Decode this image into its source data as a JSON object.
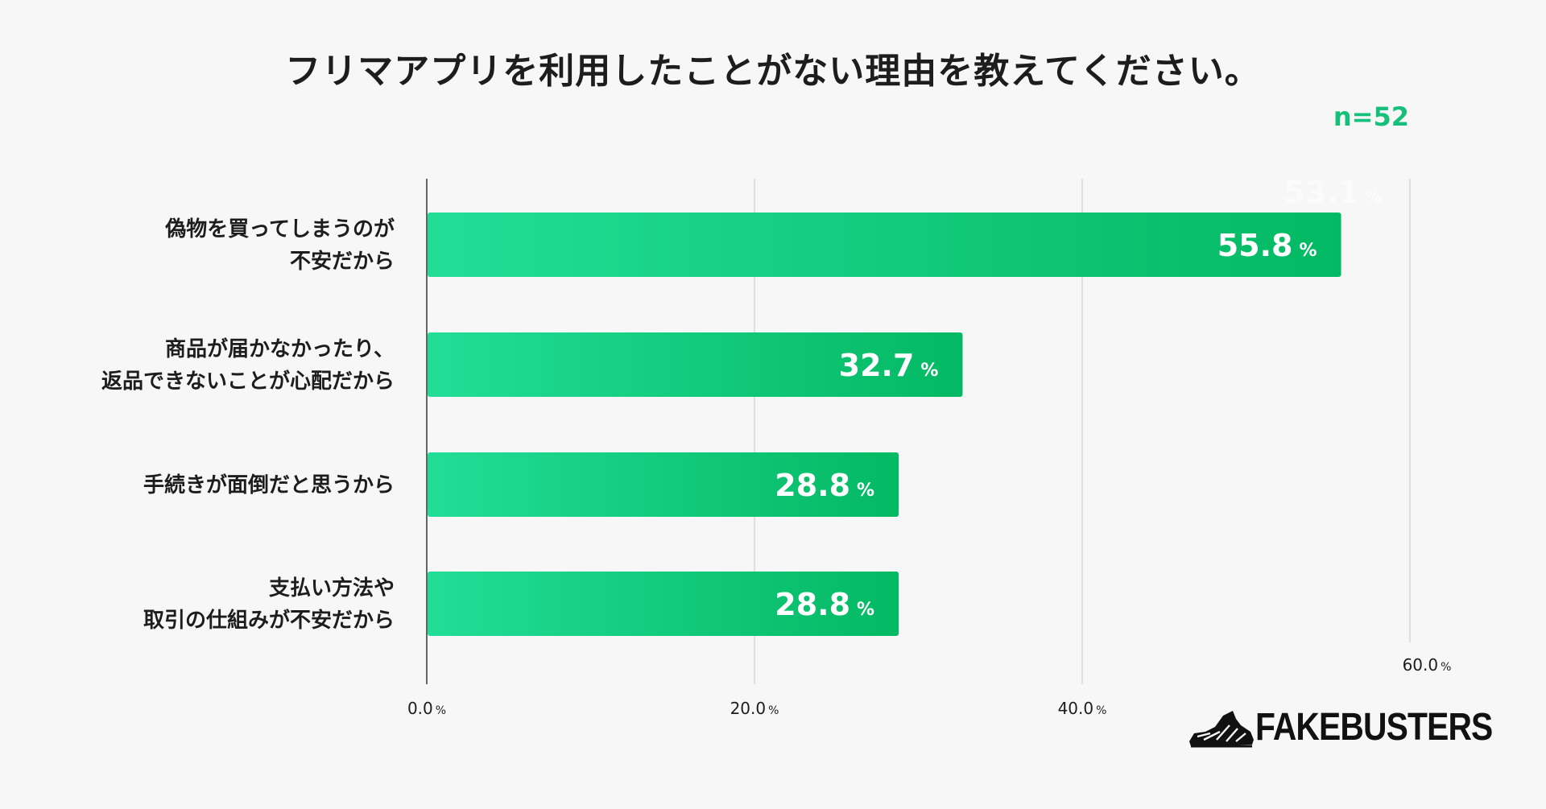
{
  "title": "フリマアプリを利用したことがない理由を教えてください。",
  "sample_size": "n=52",
  "colors": {
    "bar_start": "#22dd97",
    "bar_end": "#04b963",
    "accent_text": "#16c07a",
    "axis": "#333333",
    "grid": "#c8c8c8"
  },
  "chart_data": {
    "type": "bar",
    "orientation": "horizontal",
    "categories": [
      [
        "偽物を買ってしまうのが",
        "不安だから"
      ],
      [
        "商品が届かなかったり、",
        "返品できないことが心配だから"
      ],
      [
        "手続きが面倒だと思うから"
      ],
      [
        "支払い方法や",
        "取引の仕組みが不安だから"
      ]
    ],
    "values": [
      55.8,
      32.7,
      28.8,
      28.8
    ],
    "value_unit": "%",
    "xlim": [
      0,
      60
    ],
    "ticks": [
      {
        "value": 0,
        "label": "0.0"
      },
      {
        "value": 20,
        "label": "20.0"
      },
      {
        "value": 40,
        "label": "40.0"
      },
      {
        "value": 60,
        "label": "60.0"
      }
    ],
    "tick_unit": "%",
    "ghost_annotation": {
      "value": 53.1,
      "label": "53.1"
    },
    "grid": true
  },
  "brand": {
    "name": "FAKEBUSTERS",
    "icon": "fakebusters-shoe-icon"
  }
}
